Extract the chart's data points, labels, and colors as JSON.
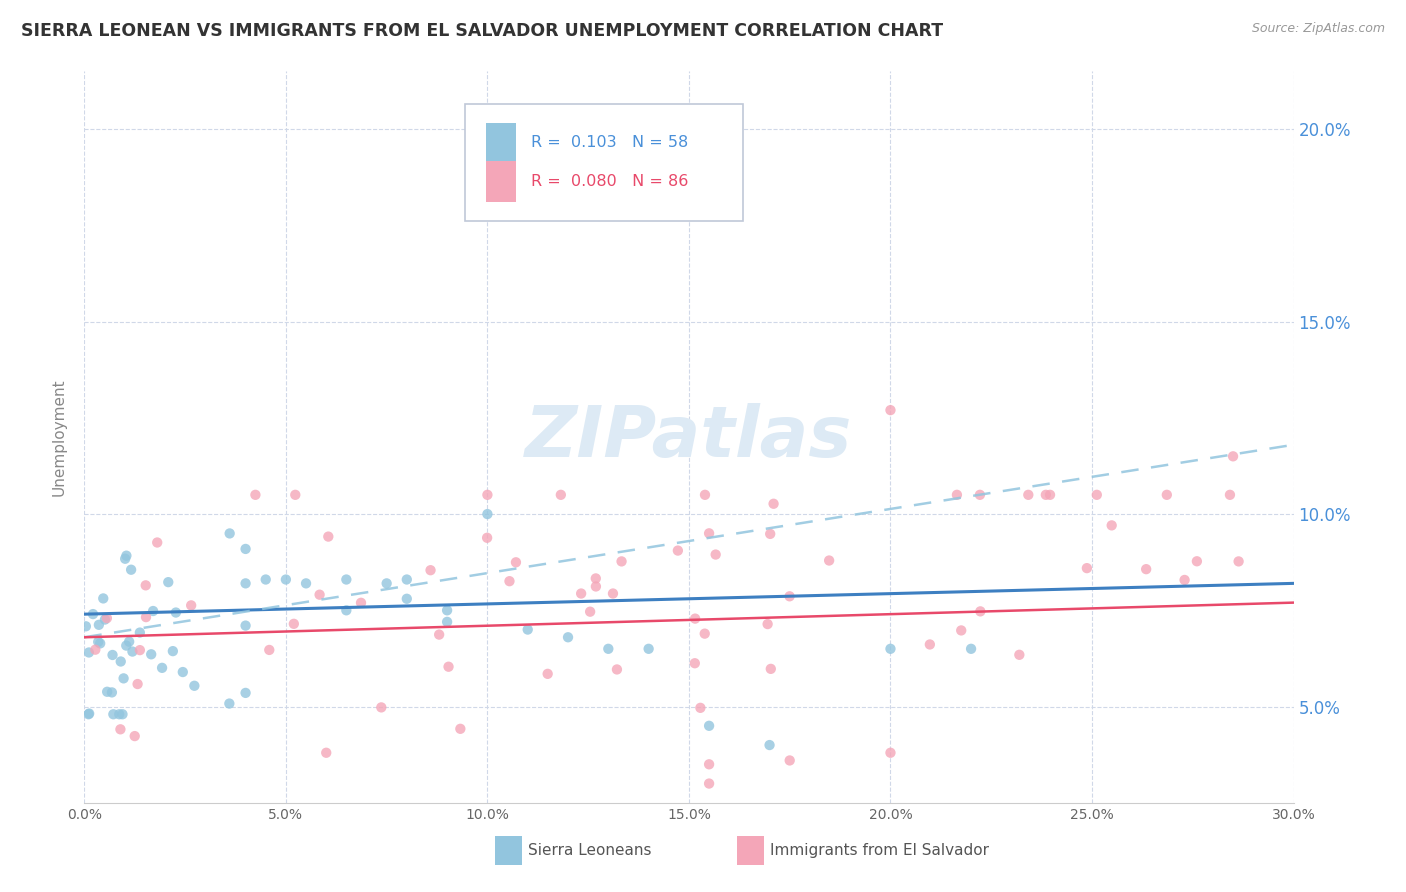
{
  "title": "SIERRA LEONEAN VS IMMIGRANTS FROM EL SALVADOR UNEMPLOYMENT CORRELATION CHART",
  "source_text": "Source: ZipAtlas.com",
  "ylabel": "Unemployment",
  "xmin": 0.0,
  "xmax": 0.3,
  "ymin": 0.025,
  "ymax": 0.215,
  "color_blue": "#92c5de",
  "color_pink": "#f4a6b8",
  "color_blue_line": "#3d7fc1",
  "color_pink_line": "#e8496a",
  "color_dashed_line": "#92c5de",
  "watermark_color": "#d8e8f0",
  "grid_color": "#d0d8e8",
  "legend_r1": "R =  0.103",
  "legend_n1": "N = 58",
  "legend_r2": "R =  0.080",
  "legend_n2": "N = 86",
  "ytick_color": "#4a90d9",
  "xtick_color": "#666666",
  "sierra_trend_start": 0.074,
  "sierra_trend_end": 0.082,
  "salvador_trend_start": 0.068,
  "salvador_trend_end": 0.118
}
